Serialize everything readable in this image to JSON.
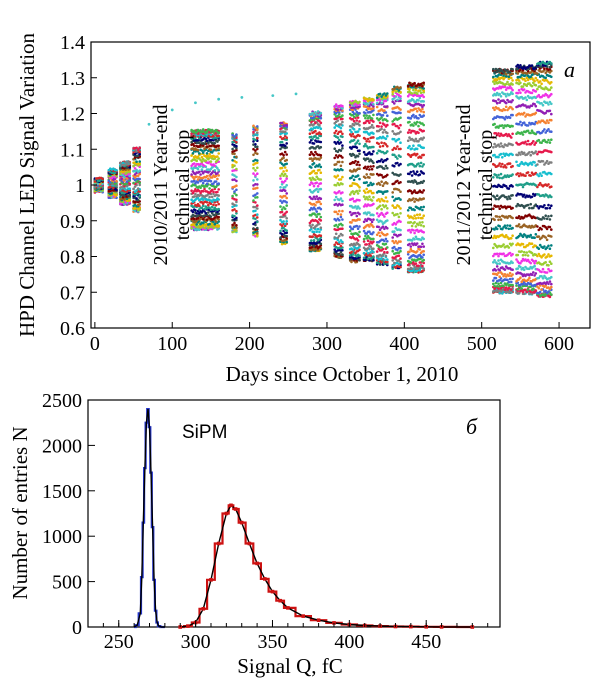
{
  "chart_data": [
    {
      "type": "scatter",
      "panel_label": "a",
      "xlabel": "Days since October 1, 2010",
      "ylabel": "HPD Channel LED Signal Variation",
      "xlim": [
        -5,
        640
      ],
      "ylim": [
        0.6,
        1.4
      ],
      "xticks": [
        "0",
        "100",
        "200",
        "300",
        "400",
        "500",
        "600"
      ],
      "yticks": [
        "0.6",
        "0.7",
        "0.8",
        "0.9",
        "1",
        "1.1",
        "1.2",
        "1.3",
        "1.4"
      ],
      "annotations": [
        {
          "text": [
            "2010/2011 Year-end",
            "technical stop"
          ],
          "x": 68,
          "y": 1.0
        },
        {
          "text": [
            "2011/2012 Year-end",
            "technical stop"
          ],
          "x": 475,
          "y": 1.0
        }
      ],
      "measurement_blocks": [
        {
          "x": [
            0,
            10
          ],
          "lo": 0.985,
          "hi": 1.015
        },
        {
          "x": [
            18,
            28
          ],
          "lo": 0.97,
          "hi": 1.04
        },
        {
          "x": [
            33,
            45
          ],
          "lo": 0.95,
          "hi": 1.06
        },
        {
          "x": [
            50,
            58
          ],
          "lo": 0.93,
          "hi": 1.1
        },
        {
          "x": [
            125,
            160
          ],
          "lo": 0.88,
          "hi": 1.15
        },
        {
          "x": [
            178,
            183
          ],
          "lo": 0.87,
          "hi": 1.14
        },
        {
          "x": [
            205,
            210
          ],
          "lo": 0.86,
          "hi": 1.16
        },
        {
          "x": [
            240,
            248
          ],
          "lo": 0.84,
          "hi": 1.17
        },
        {
          "x": [
            278,
            292
          ],
          "lo": 0.82,
          "hi": 1.2
        },
        {
          "x": [
            310,
            320
          ],
          "lo": 0.8,
          "hi": 1.22
        },
        {
          "x": [
            330,
            342
          ],
          "lo": 0.79,
          "hi": 1.23
        },
        {
          "x": [
            348,
            360
          ],
          "lo": 0.79,
          "hi": 1.24
        },
        {
          "x": [
            365,
            378
          ],
          "lo": 0.78,
          "hi": 1.25
        },
        {
          "x": [
            385,
            395
          ],
          "lo": 0.77,
          "hi": 1.27
        },
        {
          "x": [
            405,
            425
          ],
          "lo": 0.76,
          "hi": 1.28
        },
        {
          "x": [
            515,
            540
          ],
          "lo": 0.7,
          "hi": 1.32
        },
        {
          "x": [
            545,
            570
          ],
          "lo": 0.7,
          "hi": 1.33
        },
        {
          "x": [
            572,
            590
          ],
          "lo": 0.69,
          "hi": 1.34
        }
      ],
      "series_colors": [
        "#e6194b",
        "#3cb44b",
        "#4363d8",
        "#f58231",
        "#911eb4",
        "#46c7c7",
        "#f032e6",
        "#9acd32",
        "#e6b800",
        "#008080",
        "#9a6324",
        "#800000",
        "#2f4f4f",
        "#000075",
        "#1f9e89",
        "#d62728",
        "#17becf",
        "#7f7f7f"
      ]
    },
    {
      "type": "line",
      "panel_label": "б",
      "xlabel": "Signal Q, fC",
      "ylabel": "Number of entries N",
      "xlim": [
        230,
        498
      ],
      "ylim": [
        0,
        2500
      ],
      "xticks": [
        "250",
        "300",
        "350",
        "400",
        "450"
      ],
      "yticks": [
        "0",
        "500",
        "1000",
        "1500",
        "2000",
        "2500"
      ],
      "annotation": "SiPM",
      "series": [
        {
          "color": "#2233cc",
          "x": [
            260,
            262,
            264,
            265,
            266,
            267,
            268,
            269,
            270,
            271,
            272,
            273,
            274,
            275,
            276,
            278,
            280
          ],
          "values": [
            0,
            20,
            150,
            550,
            1150,
            1750,
            2250,
            2400,
            2200,
            1700,
            1100,
            520,
            180,
            50,
            10,
            0,
            0
          ]
        },
        {
          "color": "#cc1111",
          "x": [
            290,
            295,
            300,
            305,
            310,
            315,
            320,
            323,
            326,
            330,
            335,
            340,
            345,
            350,
            355,
            360,
            370,
            380,
            390,
            400,
            410,
            420,
            430,
            440,
            450,
            460,
            480
          ],
          "values": [
            0,
            10,
            50,
            200,
            520,
            920,
            1250,
            1340,
            1300,
            1150,
            920,
            700,
            530,
            390,
            290,
            210,
            120,
            75,
            45,
            28,
            17,
            10,
            6,
            4,
            2,
            1,
            0
          ]
        }
      ]
    }
  ]
}
